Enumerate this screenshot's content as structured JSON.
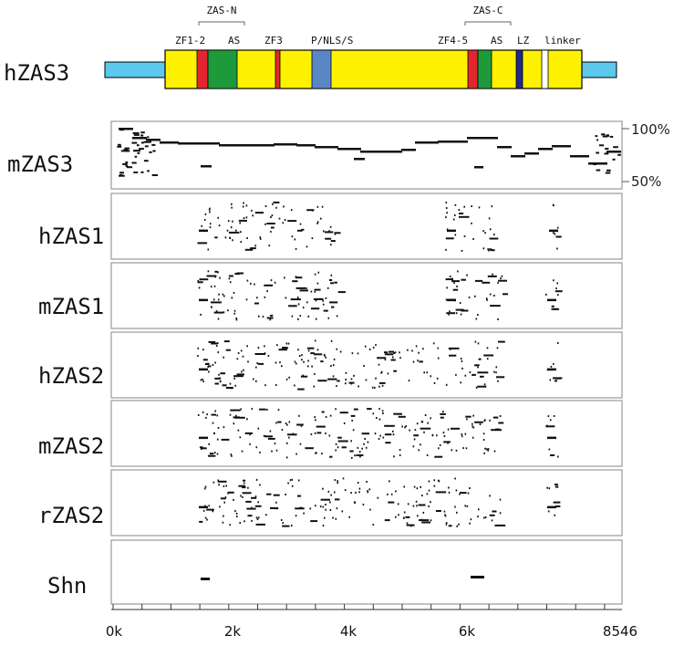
{
  "gene": {
    "label": "hZAS3",
    "region_labels": {
      "zas_n": "ZAS-N",
      "zas_c": "ZAS-C"
    },
    "domain_labels": [
      "ZF1-2",
      "AS",
      "ZF3",
      "P/NLS/S",
      "ZF4-5",
      "AS",
      "LZ",
      "linker"
    ],
    "colors": {
      "utr": "#5bc8ec",
      "body": "#fff200",
      "zinc_finger": "#e3262d",
      "acidic": "#1f9a3b",
      "pns": "#5b86c6",
      "leucine_zipper": "#1f2a8a",
      "linker": "#ffffff"
    }
  },
  "percent_scale": {
    "top": "100%",
    "bottom": "50%"
  },
  "tracks": [
    "mZAS3",
    "hZAS1",
    "mZAS1",
    "hZAS2",
    "mZAS2",
    "rZAS2",
    "Shn"
  ],
  "x_axis": {
    "ticks": [
      "0k",
      "2k",
      "4k",
      "6k",
      "8546"
    ]
  }
}
